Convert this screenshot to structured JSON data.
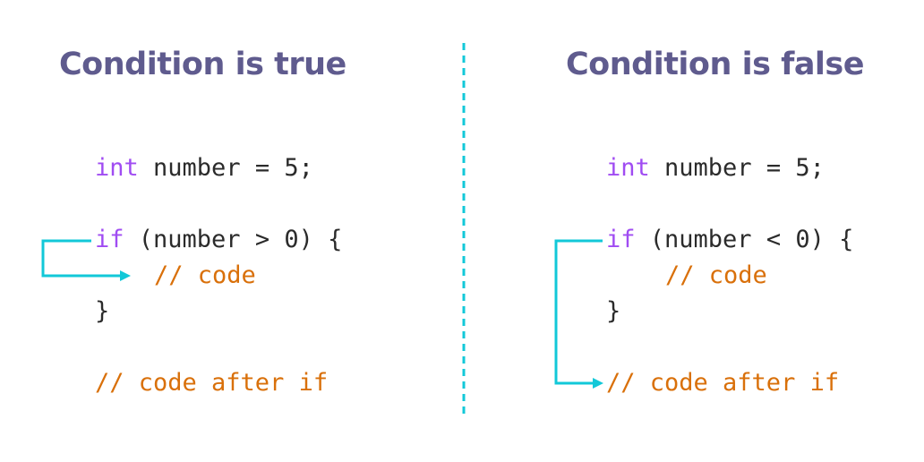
{
  "colors": {
    "title": "#5f5b8e",
    "keyword": "#a04cf2",
    "comment": "#d9700a",
    "arrow": "#12c8d8",
    "divider": "#12c8d8"
  },
  "left": {
    "title": "Condition is true",
    "decl_kw": "int",
    "decl_rest": " number = 5;",
    "if_kw": "if",
    "if_rest": " (number > 0) {",
    "body": "// code",
    "close": "}",
    "after": "// code after if"
  },
  "right": {
    "title": "Condition is false",
    "decl_kw": "int",
    "decl_rest": " number = 5;",
    "if_kw": "if",
    "if_rest": " (number < 0) {",
    "body": "// code",
    "close": "}",
    "after": "// code after if"
  }
}
